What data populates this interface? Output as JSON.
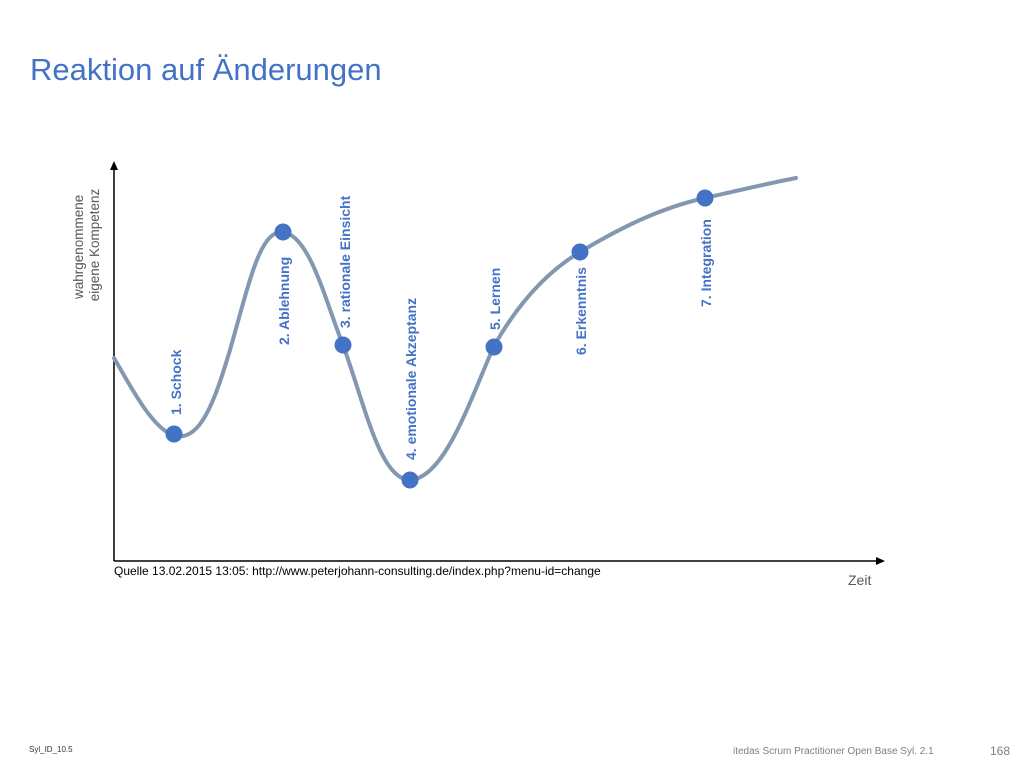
{
  "slide": {
    "title": "Reaktion auf Änderungen"
  },
  "diagram": {
    "y_axis_label_line1": "wahrgenommene",
    "y_axis_label_line2": "eigene Kompetenz",
    "x_axis_label": "Zeit",
    "curve_color": "#8497b0",
    "point_color": "#4472c4",
    "label_color": "#4472c4",
    "stages": [
      {
        "label": "1. Schock"
      },
      {
        "label": "2. Ablehnung"
      },
      {
        "label": "3. rationale Einsicht"
      },
      {
        "label": "4. emotionale Akzeptanz"
      },
      {
        "label": "5. Lernen"
      },
      {
        "label": "6. Erkenntnis"
      },
      {
        "label": "7. Integration"
      }
    ]
  },
  "source": {
    "text": "Quelle 13.02.2015 13:05: http://www.peterjohann-consulting.de/index.php?menu-id=change"
  },
  "footer": {
    "id": "Syl_ID_10.5",
    "course": "itedas Scrum Practitioner Open Base Syl. 2.1",
    "page": "168"
  }
}
